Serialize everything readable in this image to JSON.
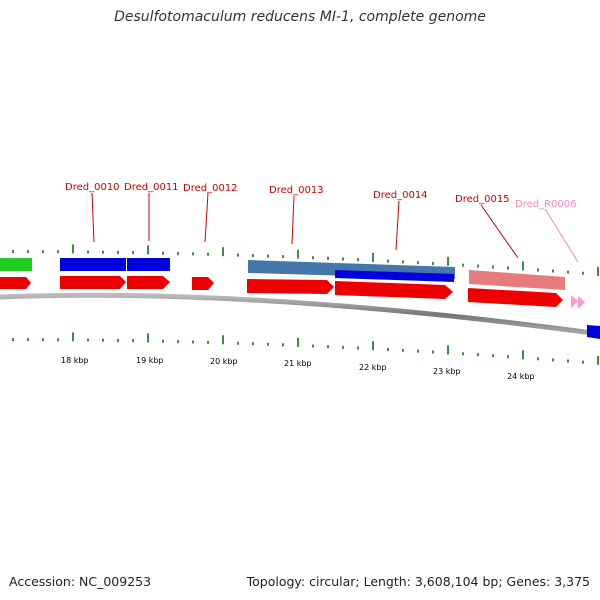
{
  "title": "Desulfotomaculum reducens MI-1, complete genome",
  "footer": {
    "accession": "Accession: NC_009253",
    "summary": "Topology: circular; Length: 3,608,104 bp; Genes: 3,375"
  },
  "scale_labels": [
    "18 kbp",
    "19 kbp",
    "20 kbp",
    "21 kbp",
    "22 kbp",
    "23 kbp",
    "24 kbp"
  ],
  "gene_labels": [
    {
      "text": "Dred_0010",
      "color": "#cc0000"
    },
    {
      "text": "Dred_0011",
      "color": "#cc0000"
    },
    {
      "text": "Dred_0012",
      "color": "#cc0000"
    },
    {
      "text": "Dred_0013",
      "color": "#cc0000"
    },
    {
      "text": "Dred_0014",
      "color": "#cc0000"
    },
    {
      "text": "Dred_0015",
      "color": "#cc0000"
    },
    {
      "text": "Dred_R0006",
      "color": "#ee88bb"
    }
  ],
  "colors": {
    "cds": "#ee0000",
    "rrna": "#ff99cc",
    "blast_blue": "#0000dd",
    "blast_steel": "#4477aa",
    "blast_pink": "#e87c7c",
    "blast_green": "#22cc22",
    "tick": "#006600",
    "backbone": "#888888"
  }
}
